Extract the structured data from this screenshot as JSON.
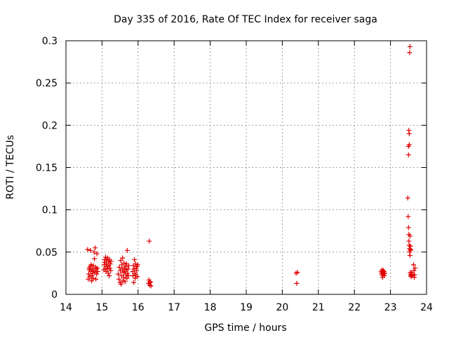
{
  "chart_data": {
    "type": "scatter",
    "title": "Day 335 of 2016, Rate Of TEC Index for receiver saga",
    "xlabel": "GPS time / hours",
    "ylabel": "ROTI / TECUs",
    "xlim": [
      14,
      24
    ],
    "ylim": [
      0,
      0.3
    ],
    "xticks": [
      14,
      15,
      16,
      17,
      18,
      19,
      20,
      21,
      22,
      23,
      24
    ],
    "yticks": [
      0,
      0.05,
      0.1,
      0.15,
      0.2,
      0.25,
      0.3
    ],
    "xtick_labels": [
      "14",
      "15",
      "16",
      "17",
      "18",
      "19",
      "20",
      "21",
      "22",
      "23",
      "24"
    ],
    "ytick_labels": [
      "0",
      "0.05",
      "0.1",
      "0.15",
      "0.2",
      "0.25",
      "0.3"
    ],
    "grid": true,
    "marker": "+",
    "marker_color": "#e00000",
    "series": [
      {
        "name": "ROTI",
        "points": [
          [
            14.6,
            0.053
          ],
          [
            14.62,
            0.018
          ],
          [
            14.63,
            0.024
          ],
          [
            14.64,
            0.031
          ],
          [
            14.65,
            0.029
          ],
          [
            14.66,
            0.021
          ],
          [
            14.67,
            0.033
          ],
          [
            14.68,
            0.052
          ],
          [
            14.69,
            0.027
          ],
          [
            14.7,
            0.035
          ],
          [
            14.71,
            0.016
          ],
          [
            14.72,
            0.022
          ],
          [
            14.73,
            0.03
          ],
          [
            14.74,
            0.025
          ],
          [
            14.75,
            0.019
          ],
          [
            14.76,
            0.034
          ],
          [
            14.77,
            0.028
          ],
          [
            14.78,
            0.05
          ],
          [
            14.79,
            0.042
          ],
          [
            14.8,
            0.026
          ],
          [
            14.81,
            0.055
          ],
          [
            14.82,
            0.032
          ],
          [
            14.83,
            0.018
          ],
          [
            14.84,
            0.03
          ],
          [
            14.85,
            0.024
          ],
          [
            14.86,
            0.048
          ],
          [
            14.87,
            0.031
          ],
          [
            14.88,
            0.027
          ],
          [
            15.05,
            0.029
          ],
          [
            15.06,
            0.035
          ],
          [
            15.07,
            0.041
          ],
          [
            15.08,
            0.038
          ],
          [
            15.09,
            0.031
          ],
          [
            15.1,
            0.044
          ],
          [
            15.11,
            0.027
          ],
          [
            15.12,
            0.036
          ],
          [
            15.13,
            0.04
          ],
          [
            15.14,
            0.033
          ],
          [
            15.15,
            0.03
          ],
          [
            15.16,
            0.043
          ],
          [
            15.17,
            0.025
          ],
          [
            15.18,
            0.038
          ],
          [
            15.19,
            0.034
          ],
          [
            15.2,
            0.022
          ],
          [
            15.21,
            0.041
          ],
          [
            15.22,
            0.031
          ],
          [
            15.23,
            0.036
          ],
          [
            15.24,
            0.028
          ],
          [
            15.25,
            0.039
          ],
          [
            15.45,
            0.024
          ],
          [
            15.47,
            0.018
          ],
          [
            15.48,
            0.032
          ],
          [
            15.5,
            0.014
          ],
          [
            15.51,
            0.028
          ],
          [
            15.52,
            0.04
          ],
          [
            15.53,
            0.012
          ],
          [
            15.54,
            0.022
          ],
          [
            15.55,
            0.035
          ],
          [
            15.56,
            0.03
          ],
          [
            15.57,
            0.043
          ],
          [
            15.58,
            0.016
          ],
          [
            15.59,
            0.026
          ],
          [
            15.6,
            0.02
          ],
          [
            15.61,
            0.037
          ],
          [
            15.62,
            0.031
          ],
          [
            15.63,
            0.027
          ],
          [
            15.64,
            0.015
          ],
          [
            15.65,
            0.033
          ],
          [
            15.66,
            0.023
          ],
          [
            15.67,
            0.029
          ],
          [
            15.68,
            0.036
          ],
          [
            15.69,
            0.019
          ],
          [
            15.7,
            0.052
          ],
          [
            15.71,
            0.025
          ],
          [
            15.72,
            0.03
          ],
          [
            15.73,
            0.022
          ],
          [
            15.74,
            0.034
          ],
          [
            15.85,
            0.027
          ],
          [
            15.86,
            0.022
          ],
          [
            15.87,
            0.034
          ],
          [
            15.88,
            0.014
          ],
          [
            15.89,
            0.03
          ],
          [
            15.9,
            0.041
          ],
          [
            15.91,
            0.025
          ],
          [
            15.92,
            0.019
          ],
          [
            15.93,
            0.036
          ],
          [
            15.94,
            0.023
          ],
          [
            15.95,
            0.031
          ],
          [
            15.96,
            0.028
          ],
          [
            15.97,
            0.033
          ],
          [
            15.98,
            0.021
          ],
          [
            15.99,
            0.035
          ],
          [
            16.29,
            0.013
          ],
          [
            16.3,
            0.017
          ],
          [
            16.31,
            0.063
          ],
          [
            16.32,
            0.011
          ],
          [
            16.33,
            0.015
          ],
          [
            16.34,
            0.014
          ],
          [
            16.36,
            0.01
          ],
          [
            20.38,
            0.025
          ],
          [
            20.4,
            0.013
          ],
          [
            20.42,
            0.026
          ],
          [
            22.74,
            0.027
          ],
          [
            22.75,
            0.025
          ],
          [
            22.76,
            0.023
          ],
          [
            22.77,
            0.029
          ],
          [
            22.78,
            0.02
          ],
          [
            22.79,
            0.026
          ],
          [
            22.8,
            0.028
          ],
          [
            22.81,
            0.024
          ],
          [
            22.82,
            0.027
          ],
          [
            22.83,
            0.022
          ],
          [
            22.84,
            0.025
          ],
          [
            23.48,
            0.114
          ],
          [
            23.49,
            0.092
          ],
          [
            23.5,
            0.079
          ],
          [
            23.5,
            0.165
          ],
          [
            23.5,
            0.175
          ],
          [
            23.51,
            0.071
          ],
          [
            23.51,
            0.063
          ],
          [
            23.51,
            0.194
          ],
          [
            23.52,
            0.058
          ],
          [
            23.52,
            0.19
          ],
          [
            23.52,
            0.177
          ],
          [
            23.53,
            0.054
          ],
          [
            23.53,
            0.05
          ],
          [
            23.53,
            0.286
          ],
          [
            23.54,
            0.046
          ],
          [
            23.54,
            0.293
          ],
          [
            23.54,
            0.069
          ],
          [
            23.55,
            0.057
          ],
          [
            23.55,
            0.052
          ],
          [
            23.55,
            0.026
          ],
          [
            23.56,
            0.023
          ],
          [
            23.56,
            0.053
          ],
          [
            23.57,
            0.021
          ],
          [
            23.57,
            0.024
          ],
          [
            23.58,
            0.022
          ],
          [
            23.59,
            0.026
          ],
          [
            23.6,
            0.024
          ],
          [
            23.64,
            0.035
          ],
          [
            23.65,
            0.028
          ],
          [
            23.66,
            0.02
          ],
          [
            23.67,
            0.023
          ],
          [
            23.68,
            0.031
          ]
        ]
      }
    ]
  }
}
